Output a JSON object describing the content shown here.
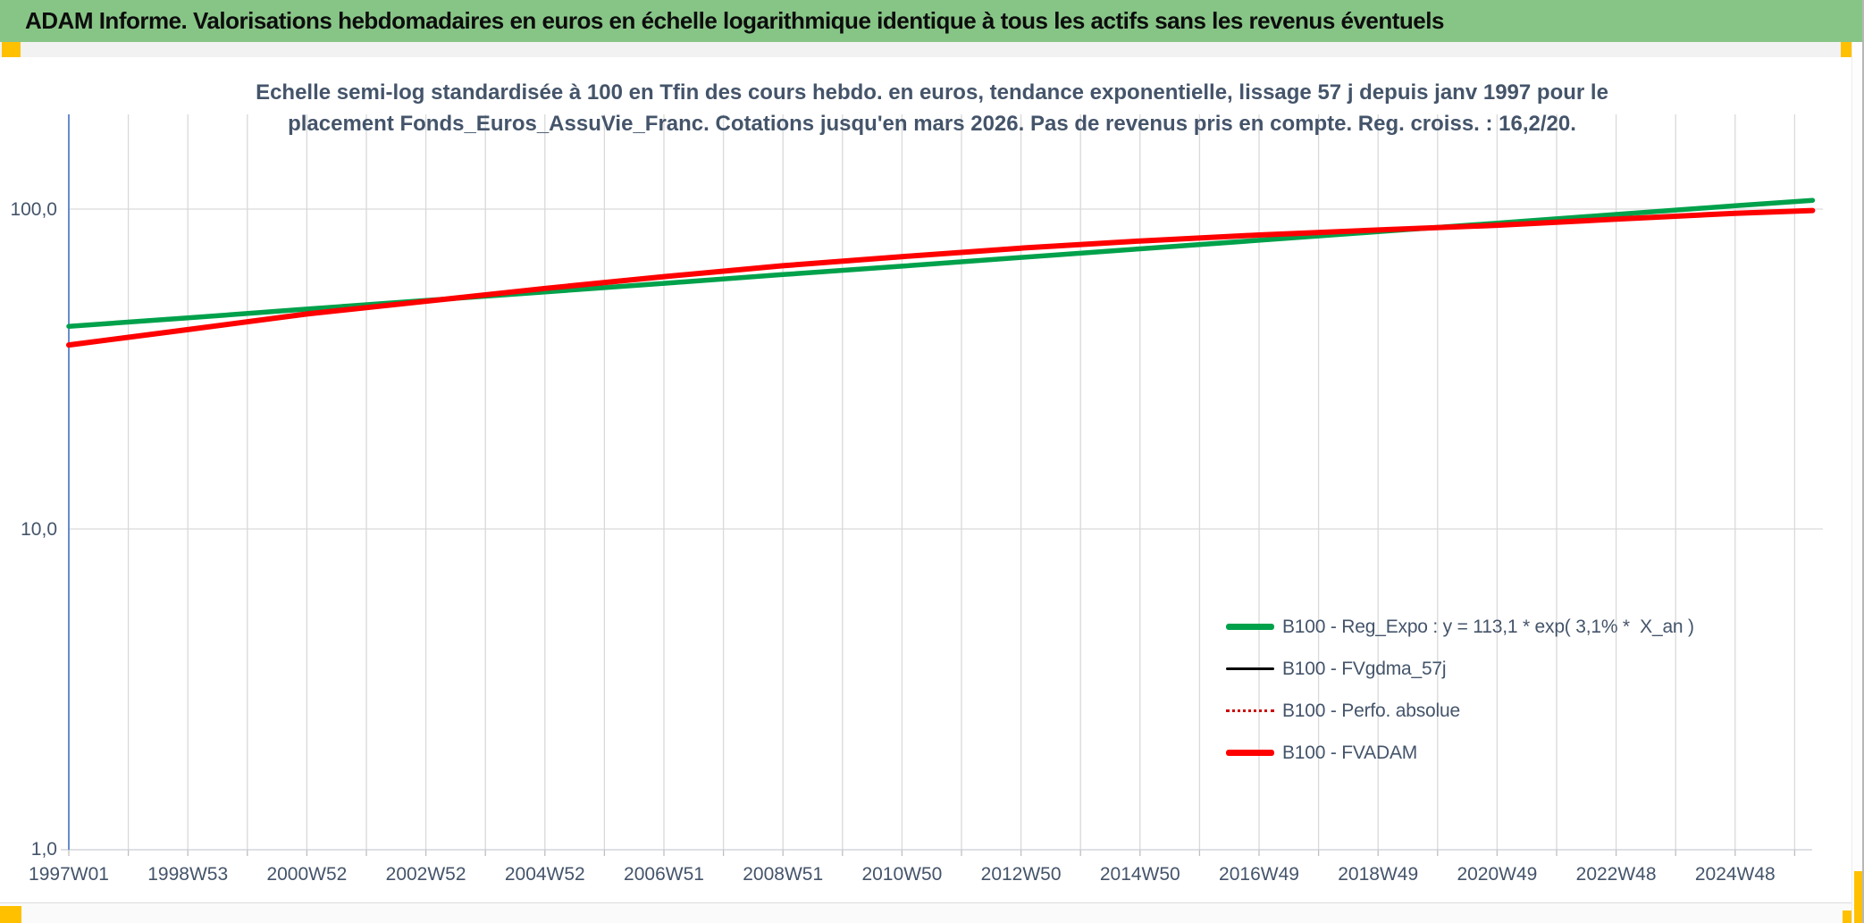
{
  "title_bar": {
    "text": "ADAM Informe. Valorisations hebdomadaires en euros en échelle logarithmique identique à tous les actifs sans les revenus éventuels",
    "bg_color": "#87C586",
    "text_color": "#0d0d0d"
  },
  "accent": {
    "scroll_thumb_color": "#FFC000",
    "scroll_track_color": "#F2F2F2"
  },
  "chart": {
    "subtitle_line1": "Echelle semi-log standardisée à 100 en Tfin des cours hebdo. en euros, tendance exponentielle, lissage 57 j depuis janv 1997 pour le",
    "subtitle_line2": "placement Fonds_Euros_AssuVie_Franc. Cotations jusqu'en mars 2026. Pas de revenus pris en compte. Reg. croiss. : 16,2/20.",
    "subtitle_color": "#44546A",
    "axis_line_color": "#4472C4",
    "gridline_color": "#D9D9D9",
    "baseline_color": "#C9CDD5",
    "tick_label_color": "#44546A"
  },
  "chart_data": {
    "type": "line",
    "title": "Echelle semi-log standardisée à 100 en Tfin des cours hebdo. en euros, tendance exponentielle, lissage 57 j depuis janv 1997 pour le placement Fonds_Euros_AssuVie_Franc. Cotations jusqu'en mars 2026. Pas de revenus pris en compte. Reg. croiss. : 16,2/20.",
    "x_axis_tick_labels": [
      "1997W01",
      "1998W53",
      "2000W52",
      "2002W52",
      "2004W52",
      "2006W51",
      "2008W51",
      "2010W50",
      "2012W50",
      "2014W50",
      "2016W49",
      "2018W49",
      "2020W49",
      "2022W48",
      "2024W48"
    ],
    "y_axis": {
      "scale": "log",
      "tick_labels": [
        "100,0",
        "10,0",
        "1,0"
      ],
      "tick_values": [
        100,
        10,
        1
      ],
      "ylim": [
        1,
        200
      ]
    },
    "grid": "on",
    "legend_position": "right-middle",
    "x_years": [
      1997,
      1999,
      2001,
      2003,
      2005,
      2007,
      2009,
      2011,
      2013,
      2015,
      2017,
      2019,
      2021,
      2023,
      2025,
      2026.3
    ],
    "series": [
      {
        "name": "B100 - Reg_Expo : y = 113,1 * exp( 3,1% *  X_an )",
        "color": "#00A14B",
        "style": "solid",
        "stroke_width": 5.5,
        "values": [
          43.0,
          45.7,
          48.7,
          51.8,
          55.1,
          58.6,
          62.4,
          66.3,
          70.6,
          75.1,
          79.9,
          85.0,
          90.4,
          96.2,
          102.4,
          106.5
        ]
      },
      {
        "name": "B100 - FVgdma_57j",
        "color": "#000000",
        "style": "solid",
        "stroke_width": 2.5,
        "values": [
          37.6,
          42.0,
          47.0,
          51.5,
          56.5,
          61.5,
          66.5,
          71.0,
          75.5,
          79.5,
          83.0,
          86.0,
          89.0,
          93.0,
          97.0,
          99.0
        ]
      },
      {
        "name": "B100 - Perfo. absolue",
        "color": "#CC0000",
        "style": "dotted",
        "stroke_width": 2,
        "values": [
          37.6,
          42.0,
          47.0,
          51.5,
          56.5,
          61.5,
          66.5,
          71.0,
          75.5,
          79.5,
          83.0,
          86.0,
          89.0,
          93.0,
          97.0,
          99.0
        ]
      },
      {
        "name": "B100 - FVADAM",
        "color": "#FF0000",
        "style": "solid",
        "stroke_width": 6,
        "values": [
          37.6,
          42.0,
          47.0,
          51.5,
          56.5,
          61.5,
          66.5,
          71.0,
          75.5,
          79.5,
          83.0,
          86.0,
          89.0,
          93.0,
          97.0,
          99.0
        ]
      }
    ]
  }
}
